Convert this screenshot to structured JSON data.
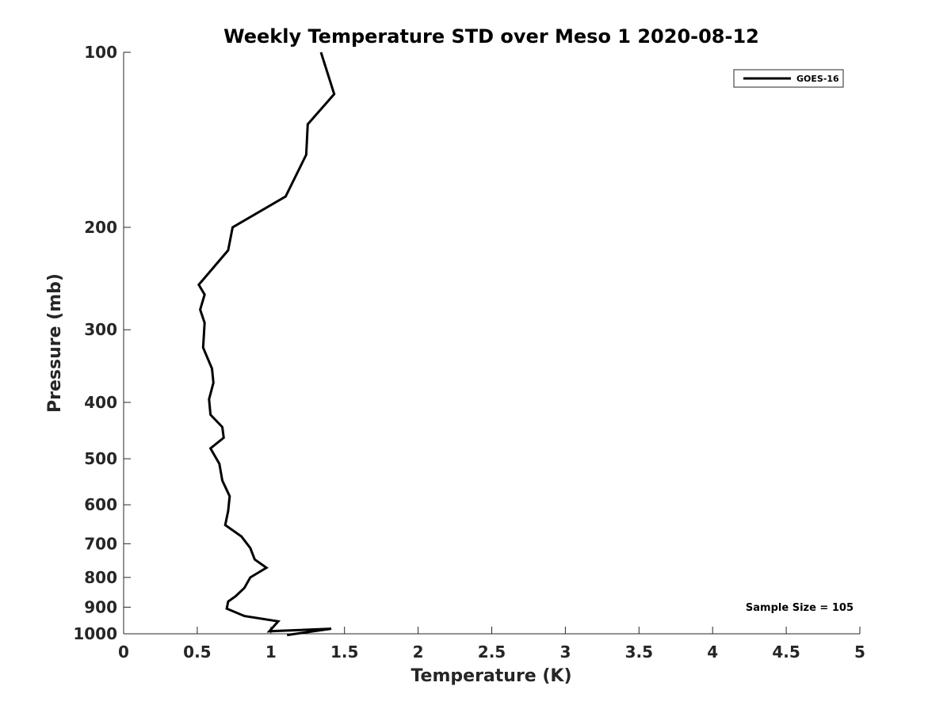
{
  "chart_data": {
    "type": "line",
    "title": "Weekly Temperature STD over Meso 1 2020-08-12",
    "xlabel": "Temperature (K)",
    "ylabel": "Pressure (mb)",
    "xlim": [
      0,
      5
    ],
    "ylim": [
      100,
      1000
    ],
    "yscale": "log",
    "yreverse": true,
    "grid": false,
    "xticks": [
      0,
      0.5,
      1,
      1.5,
      2,
      2.5,
      3,
      3.5,
      4,
      4.5,
      5
    ],
    "xtick_labels": [
      "0",
      "0.5",
      "1",
      "1.5",
      "2",
      "2.5",
      "3",
      "3.5",
      "4",
      "4.5",
      "5"
    ],
    "yticks": [
      100,
      200,
      300,
      400,
      500,
      600,
      700,
      800,
      900,
      1000
    ],
    "ytick_labels": [
      "100",
      "200",
      "300",
      "400",
      "500",
      "600",
      "700",
      "800",
      "900",
      "1000"
    ],
    "legend_position": "top-right",
    "series": [
      {
        "name": "GOES-16",
        "color": "#000000",
        "x": [
          1.34,
          1.43,
          1.25,
          1.24,
          1.1,
          0.74,
          0.71,
          0.51,
          0.55,
          0.52,
          0.55,
          0.54,
          0.6,
          0.61,
          0.58,
          0.59,
          0.67,
          0.68,
          0.59,
          0.65,
          0.67,
          0.72,
          0.71,
          0.69,
          0.8,
          0.86,
          0.89,
          0.97,
          0.86,
          0.82,
          0.76,
          0.71,
          0.7,
          0.82,
          1.05,
          0.99,
          1.41,
          1.11
        ],
        "y": [
          100,
          118,
          133,
          150,
          177,
          200,
          219,
          251,
          261,
          277,
          292,
          322,
          350,
          370,
          395,
          420,
          441,
          460,
          480,
          510,
          545,
          580,
          615,
          650,
          680,
          712,
          745,
          770,
          800,
          834,
          862,
          880,
          905,
          932,
          952,
          990,
          980,
          1005
        ]
      }
    ],
    "annotations": [
      "Sample Size = 105"
    ]
  }
}
